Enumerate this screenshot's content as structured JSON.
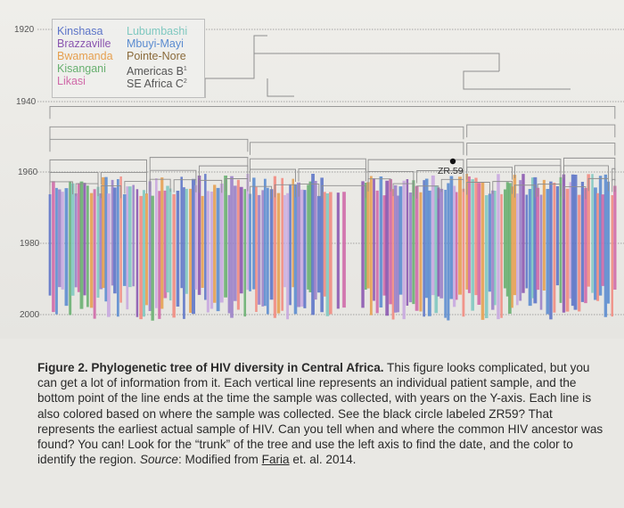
{
  "figure": {
    "axis": {
      "years": [
        "1920",
        "1940",
        "1960",
        "1980",
        "2000"
      ]
    },
    "legend": {
      "entries": [
        {
          "label": "Kinshasa",
          "color": "#5c74c8"
        },
        {
          "label": "Lubumbashi",
          "color": "#7fc8c0"
        },
        {
          "label": "Brazzaville",
          "color": "#8a56b0"
        },
        {
          "label": "Mbuyi-Mayi",
          "color": "#5a8bd0"
        },
        {
          "label": "Bwamanda",
          "color": "#e6a050"
        },
        {
          "label": "Pointe-Nore",
          "color": "#8a6a3a"
        },
        {
          "label": "Kisangani",
          "color": "#68b070"
        },
        {
          "label": "Americas B",
          "sup": "1",
          "color": "#555555"
        },
        {
          "label": "Likasi",
          "color": "#d068a8"
        },
        {
          "label": "SE Africa C",
          "sup": "2",
          "color": "#555555"
        }
      ]
    },
    "marker_label": "ZR.59",
    "branch_colors": [
      "#5c74c8",
      "#8a56b0",
      "#7fc8c0",
      "#68b070",
      "#e6a050",
      "#d068a8",
      "#5a8bd0",
      "#9a80c8",
      "#f28a80",
      "#c8a8e0"
    ]
  },
  "caption": {
    "title": "Figure 2. Phylogenetic tree of HIV diversity in Central Africa.",
    "body": " This figure looks complicated, but you can get a lot of information from it. Each vertical line represents an individual patient sample, and the bottom point of the line ends at the time the sample was collected, with years on the Y-axis. Each line is also colored based on where the sample was collected. See the black circle labeled ZR59? That represents the earliest actual sample of HIV. Can you tell when and where the common HIV ancestor was found? You can! Look for the “trunk” of the tree and use the left axis to find the date, and the color to identify the region. ",
    "source_label": "Source",
    "source_text": ": Modified from ",
    "source_link": "Faria",
    "source_tail": " et. al. 2014."
  }
}
